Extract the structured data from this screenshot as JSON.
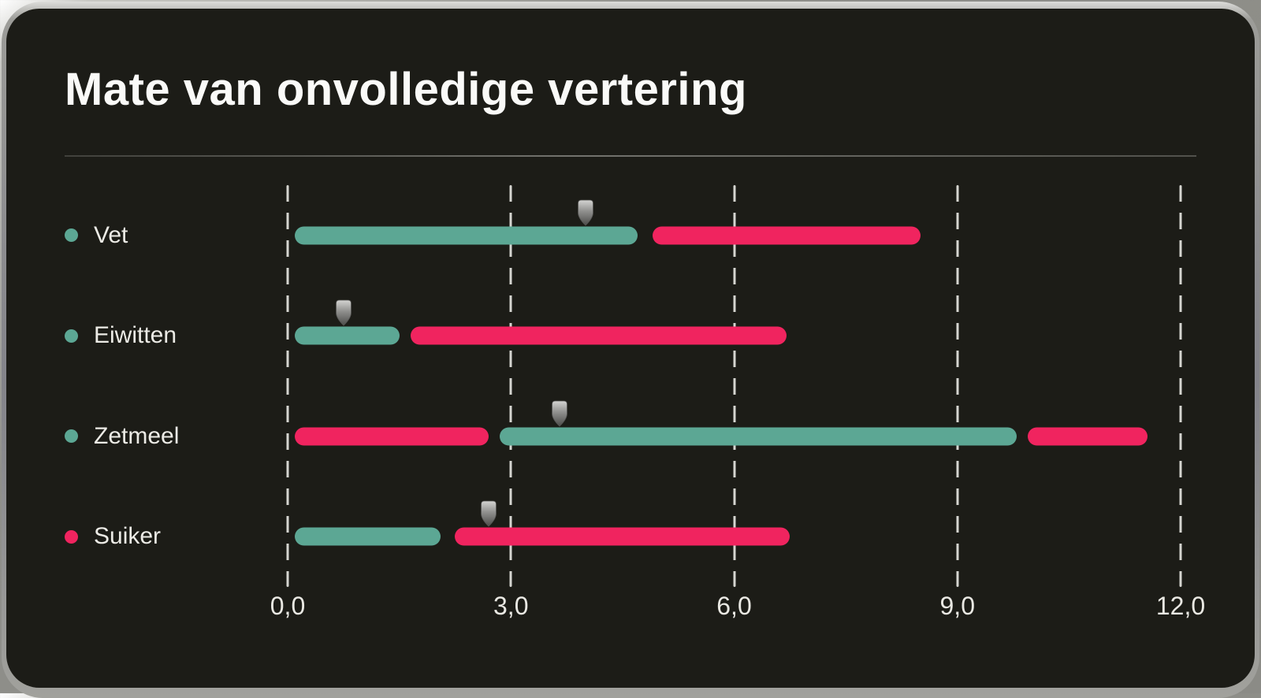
{
  "card": {
    "title": "Mate van onvolledige vertering"
  },
  "chart_data": {
    "type": "bar",
    "orientation": "horizontal-range",
    "title": "Mate van onvolledige vertering",
    "x_axis": {
      "range": [
        0,
        12
      ],
      "tick_values": [
        0,
        3,
        6,
        9,
        12
      ],
      "tick_labels": [
        "0,0",
        "3,0",
        "6,0",
        "9,0",
        "12,0"
      ],
      "gridlines": "dashed-vertical"
    },
    "legend_position": "left",
    "colors": {
      "teal": "#5CA794",
      "pink": "#F0245F"
    },
    "marker_icon": "metal-pin",
    "rows": [
      {
        "label": "Vet",
        "dot_color": "teal",
        "marker_value": 4.0,
        "segments": [
          {
            "color": "teal",
            "start": 0.1,
            "end": 4.7
          },
          {
            "color": "pink",
            "start": 4.9,
            "end": 8.5
          }
        ]
      },
      {
        "label": "Eiwitten",
        "dot_color": "teal",
        "marker_value": 0.75,
        "segments": [
          {
            "color": "teal",
            "start": 0.1,
            "end": 1.5
          },
          {
            "color": "pink",
            "start": 1.65,
            "end": 6.7
          }
        ]
      },
      {
        "label": "Zetmeel",
        "dot_color": "teal",
        "marker_value": 3.65,
        "segments": [
          {
            "color": "pink",
            "start": 0.1,
            "end": 2.7
          },
          {
            "color": "teal",
            "start": 2.85,
            "end": 9.8
          },
          {
            "color": "pink",
            "start": 9.95,
            "end": 11.55
          }
        ]
      },
      {
        "label": "Suiker",
        "dot_color": "pink",
        "marker_value": 2.7,
        "segments": [
          {
            "color": "teal",
            "start": 0.1,
            "end": 2.05
          },
          {
            "color": "pink",
            "start": 2.25,
            "end": 6.75
          }
        ]
      }
    ]
  }
}
